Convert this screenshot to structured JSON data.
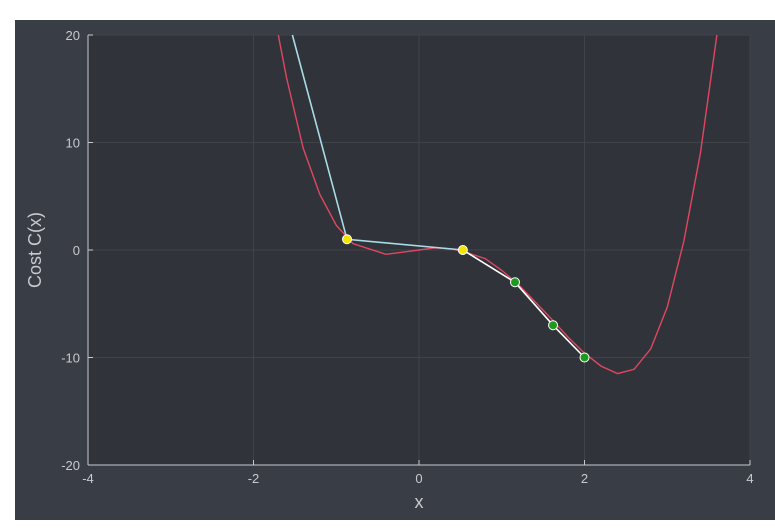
{
  "chart_data": {
    "type": "line",
    "title": "",
    "xlabel": "x",
    "ylabel": "Cost C(x)",
    "xlim": [
      -4,
      4
    ],
    "ylim": [
      -20,
      20
    ],
    "xticks": [
      -4,
      -2,
      0,
      2,
      4
    ],
    "yticks": [
      -20,
      -10,
      0,
      10,
      20
    ],
    "xtick_labels": [
      "-4",
      "-2",
      "0",
      "2",
      "4"
    ],
    "ytick_labels": [
      "-20",
      "-10",
      "0",
      "10",
      "20"
    ],
    "grid": true,
    "legend": "none",
    "colors": {
      "figure_bg": "#393d45",
      "plot_bg": "#30343a",
      "grid": "#3f444b",
      "axis": "#c8cacd",
      "curve": "#e0475f",
      "path_light": "#a9dbe6",
      "path_white": "#ffffff",
      "point_yellow": "#f2e600",
      "point_green": "#1e9a1e"
    },
    "series": [
      {
        "role": "cost-curve",
        "x": [
          -1.7,
          -1.6,
          -1.4,
          -1.2,
          -1.0,
          -0.8,
          -0.6,
          -0.4,
          -0.2,
          0.0,
          0.2,
          0.4,
          0.6,
          0.8,
          1.0,
          1.2,
          1.4,
          1.6,
          1.8,
          2.0,
          2.2,
          2.4,
          2.6,
          2.8,
          3.0,
          3.2,
          3.4,
          3.6
        ],
        "y": [
          20.0,
          16.0,
          9.5,
          5.2,
          2.3,
          0.6,
          0.1,
          -0.4,
          -0.2,
          0.0,
          0.2,
          0.1,
          -0.3,
          -0.8,
          -1.9,
          -3.2,
          -4.8,
          -6.4,
          -8.1,
          -9.6,
          -10.8,
          -11.5,
          -11.1,
          -9.2,
          -5.3,
          0.8,
          9.0,
          20.0
        ]
      },
      {
        "role": "descent-path-light",
        "x": [
          -1.53,
          -0.87,
          0.53
        ],
        "y": [
          20.0,
          1.0,
          0.0
        ],
        "markers": [
          false,
          true,
          true
        ]
      },
      {
        "role": "descent-path-white",
        "x": [
          0.53,
          1.16,
          1.62,
          2.0
        ],
        "y": [
          0.0,
          -3.0,
          -7.0,
          -10.0
        ],
        "markers": [
          false,
          true,
          true,
          true
        ]
      }
    ]
  }
}
